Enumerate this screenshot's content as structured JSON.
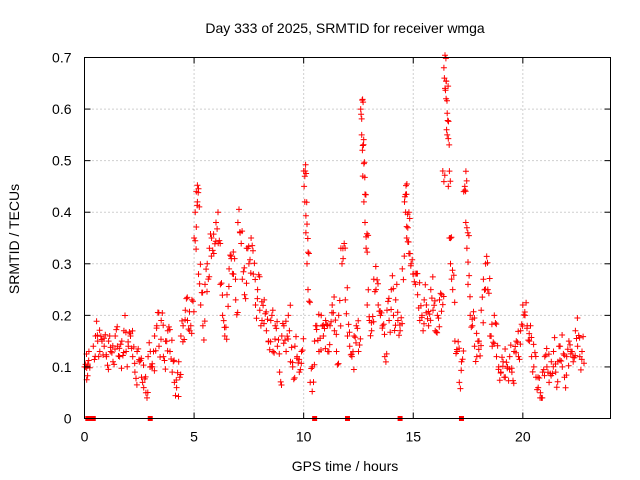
{
  "chart_data": {
    "type": "scatter",
    "title": "Day 333 of 2025, SRMTID for receiver wmga",
    "xlabel": "GPS time / hours",
    "ylabel": "SRMTID / TECUs",
    "xlim": [
      0,
      24
    ],
    "ylim": [
      0,
      0.7
    ],
    "xticks": [
      0,
      5,
      10,
      15,
      20
    ],
    "xtick_labels": [
      "0",
      "5",
      "10",
      "15",
      "20"
    ],
    "yticks": [
      0,
      0.1,
      0.2,
      0.3,
      0.4,
      0.5,
      0.6,
      0.7
    ],
    "ytick_labels": [
      "0",
      "0.1",
      "0.2",
      "0.3",
      "0.4",
      "0.5",
      "0.6",
      "0.7"
    ],
    "grid": true,
    "marker": "plus",
    "color": "#ff0000",
    "series": [
      {
        "name": "SRMTID",
        "note": "representative sample of the dense point cloud",
        "points": [
          [
            0.0,
            0.1
          ],
          [
            0.05,
            0.105
          ],
          [
            0.1,
            0.098
          ],
          [
            0.15,
            0.102
          ],
          [
            0.4,
            0.14
          ],
          [
            0.5,
            0.16
          ],
          [
            0.6,
            0.15
          ],
          [
            0.7,
            0.13
          ],
          [
            0.8,
            0.15
          ],
          [
            0.9,
            0.14
          ],
          [
            1.0,
            0.12
          ],
          [
            1.1,
            0.15
          ],
          [
            1.2,
            0.13
          ],
          [
            1.3,
            0.11
          ],
          [
            1.4,
            0.16
          ],
          [
            1.5,
            0.14
          ],
          [
            1.6,
            0.12
          ],
          [
            1.7,
            0.15
          ],
          [
            1.8,
            0.17
          ],
          [
            1.9,
            0.13
          ],
          [
            2.0,
            0.14
          ],
          [
            2.1,
            0.16
          ],
          [
            2.2,
            0.12
          ],
          [
            2.3,
            0.09
          ],
          [
            2.4,
            0.13
          ],
          [
            2.5,
            0.11
          ],
          [
            2.6,
            0.08
          ],
          [
            2.7,
            0.06
          ],
          [
            2.8,
            0.05
          ],
          [
            2.9,
            0.12
          ],
          [
            3.0,
            0.13
          ],
          [
            3.1,
            0.1
          ],
          [
            3.2,
            0.16
          ],
          [
            3.3,
            0.18
          ],
          [
            3.4,
            0.14
          ],
          [
            3.5,
            0.19
          ],
          [
            3.6,
            0.12
          ],
          [
            3.7,
            0.15
          ],
          [
            3.8,
            0.17
          ],
          [
            3.9,
            0.13
          ],
          [
            4.0,
            0.09
          ],
          [
            4.1,
            0.07
          ],
          [
            4.2,
            0.06
          ],
          [
            4.3,
            0.11
          ],
          [
            4.4,
            0.16
          ],
          [
            4.5,
            0.18
          ],
          [
            4.6,
            0.21
          ],
          [
            4.7,
            0.19
          ],
          [
            4.8,
            0.17
          ],
          [
            4.9,
            0.23
          ],
          [
            5.0,
            0.35
          ],
          [
            5.05,
            0.4
          ],
          [
            5.1,
            0.44
          ],
          [
            5.15,
            0.42
          ],
          [
            5.2,
            0.28
          ],
          [
            5.3,
            0.22
          ],
          [
            5.4,
            0.18
          ],
          [
            5.5,
            0.26
          ],
          [
            5.6,
            0.3
          ],
          [
            5.7,
            0.33
          ],
          [
            5.8,
            0.35
          ],
          [
            5.9,
            0.32
          ],
          [
            6.0,
            0.38
          ],
          [
            6.1,
            0.34
          ],
          [
            6.2,
            0.26
          ],
          [
            6.3,
            0.2
          ],
          [
            6.4,
            0.16
          ],
          [
            6.5,
            0.24
          ],
          [
            6.6,
            0.29
          ],
          [
            6.7,
            0.31
          ],
          [
            6.8,
            0.28
          ],
          [
            6.9,
            0.23
          ],
          [
            7.0,
            0.38
          ],
          [
            7.1,
            0.36
          ],
          [
            7.2,
            0.27
          ],
          [
            7.3,
            0.24
          ],
          [
            7.4,
            0.33
          ],
          [
            7.5,
            0.3
          ],
          [
            7.6,
            0.35
          ],
          [
            7.7,
            0.28
          ],
          [
            7.8,
            0.22
          ],
          [
            7.9,
            0.25
          ],
          [
            8.0,
            0.21
          ],
          [
            8.1,
            0.19
          ],
          [
            8.2,
            0.23
          ],
          [
            8.3,
            0.17
          ],
          [
            8.4,
            0.15
          ],
          [
            8.5,
            0.19
          ],
          [
            8.6,
            0.13
          ],
          [
            8.7,
            0.18
          ],
          [
            8.8,
            0.14
          ],
          [
            8.9,
            0.09
          ],
          [
            9.0,
            0.16
          ],
          [
            9.1,
            0.18
          ],
          [
            9.2,
            0.13
          ],
          [
            9.3,
            0.2
          ],
          [
            9.4,
            0.11
          ],
          [
            9.5,
            0.1
          ],
          [
            9.6,
            0.14
          ],
          [
            9.7,
            0.12
          ],
          [
            9.8,
            0.09
          ],
          [
            9.9,
            0.13
          ],
          [
            10.0,
            0.48
          ],
          [
            10.02,
            0.45
          ],
          [
            10.05,
            0.42
          ],
          [
            10.1,
            0.36
          ],
          [
            10.15,
            0.3
          ],
          [
            10.2,
            0.25
          ],
          [
            10.3,
            0.07
          ],
          [
            10.4,
            0.1
          ],
          [
            10.5,
            0.15
          ],
          [
            10.6,
            0.18
          ],
          [
            10.7,
            0.13
          ],
          [
            10.8,
            0.2
          ],
          [
            10.9,
            0.16
          ],
          [
            11.0,
            0.19
          ],
          [
            11.1,
            0.13
          ],
          [
            11.2,
            0.18
          ],
          [
            11.3,
            0.22
          ],
          [
            11.4,
            0.17
          ],
          [
            11.5,
            0.13
          ],
          [
            11.6,
            0.2
          ],
          [
            11.7,
            0.33
          ],
          [
            11.8,
            0.31
          ],
          [
            11.9,
            0.23
          ],
          [
            12.0,
            0.16
          ],
          [
            12.1,
            0.14
          ],
          [
            12.2,
            0.12
          ],
          [
            12.3,
            0.16
          ],
          [
            12.4,
            0.18
          ],
          [
            12.5,
            0.13
          ],
          [
            12.6,
            0.6
          ],
          [
            12.62,
            0.59
          ],
          [
            12.65,
            0.55
          ],
          [
            12.68,
            0.52
          ],
          [
            12.7,
            0.47
          ],
          [
            12.75,
            0.42
          ],
          [
            12.8,
            0.38
          ],
          [
            12.85,
            0.33
          ],
          [
            12.9,
            0.22
          ],
          [
            13.0,
            0.19
          ],
          [
            13.1,
            0.17
          ],
          [
            13.2,
            0.27
          ],
          [
            13.3,
            0.25
          ],
          [
            13.4,
            0.22
          ],
          [
            13.5,
            0.2
          ],
          [
            13.6,
            0.18
          ],
          [
            13.7,
            0.12
          ],
          [
            13.8,
            0.21
          ],
          [
            13.9,
            0.19
          ],
          [
            14.0,
            0.25
          ],
          [
            14.1,
            0.2
          ],
          [
            14.2,
            0.23
          ],
          [
            14.3,
            0.19
          ],
          [
            14.4,
            0.17
          ],
          [
            14.5,
            0.29
          ],
          [
            14.6,
            0.42
          ],
          [
            14.62,
            0.43
          ],
          [
            14.65,
            0.4
          ],
          [
            14.7,
            0.35
          ],
          [
            14.75,
            0.37
          ],
          [
            14.8,
            0.32
          ],
          [
            14.9,
            0.3
          ],
          [
            15.0,
            0.28
          ],
          [
            15.1,
            0.26
          ],
          [
            15.2,
            0.24
          ],
          [
            15.3,
            0.19
          ],
          [
            15.4,
            0.2
          ],
          [
            15.5,
            0.23
          ],
          [
            15.6,
            0.22
          ],
          [
            15.7,
            0.18
          ],
          [
            15.8,
            0.25
          ],
          [
            15.9,
            0.21
          ],
          [
            16.0,
            0.17
          ],
          [
            16.1,
            0.2
          ],
          [
            16.2,
            0.23
          ],
          [
            16.3,
            0.24
          ],
          [
            16.35,
            0.48
          ],
          [
            16.4,
            0.68
          ],
          [
            16.42,
            0.66
          ],
          [
            16.45,
            0.64
          ],
          [
            16.5,
            0.62
          ],
          [
            16.52,
            0.56
          ],
          [
            16.55,
            0.55
          ],
          [
            16.6,
            0.45
          ],
          [
            16.65,
            0.35
          ],
          [
            16.7,
            0.3
          ],
          [
            16.8,
            0.25
          ],
          [
            16.9,
            0.15
          ],
          [
            17.0,
            0.13
          ],
          [
            17.1,
            0.07
          ],
          [
            17.2,
            0.11
          ],
          [
            17.3,
            0.44
          ],
          [
            17.35,
            0.45
          ],
          [
            17.4,
            0.38
          ],
          [
            17.45,
            0.33
          ],
          [
            17.5,
            0.26
          ],
          [
            17.6,
            0.2
          ],
          [
            17.7,
            0.18
          ],
          [
            17.8,
            0.14
          ],
          [
            17.9,
            0.12
          ],
          [
            18.0,
            0.15
          ],
          [
            18.1,
            0.21
          ],
          [
            18.2,
            0.27
          ],
          [
            18.3,
            0.3
          ],
          [
            18.4,
            0.25
          ],
          [
            18.5,
            0.16
          ],
          [
            18.6,
            0.14
          ],
          [
            18.7,
            0.2
          ],
          [
            18.8,
            0.12
          ],
          [
            18.9,
            0.1
          ],
          [
            19.0,
            0.09
          ],
          [
            19.1,
            0.11
          ],
          [
            19.2,
            0.08
          ],
          [
            19.3,
            0.1
          ],
          [
            19.4,
            0.12
          ],
          [
            19.5,
            0.09
          ],
          [
            19.6,
            0.13
          ],
          [
            19.7,
            0.15
          ],
          [
            19.8,
            0.12
          ],
          [
            19.9,
            0.17
          ],
          [
            20.0,
            0.22
          ],
          [
            20.1,
            0.2
          ],
          [
            20.2,
            0.18
          ],
          [
            20.3,
            0.15
          ],
          [
            20.4,
            0.12
          ],
          [
            20.5,
            0.1
          ],
          [
            20.6,
            0.08
          ],
          [
            20.7,
            0.06
          ],
          [
            20.8,
            0.05
          ],
          [
            20.9,
            0.09
          ],
          [
            21.0,
            0.12
          ],
          [
            21.1,
            0.1
          ],
          [
            21.2,
            0.07
          ],
          [
            21.3,
            0.11
          ],
          [
            21.4,
            0.13
          ],
          [
            21.5,
            0.09
          ],
          [
            21.6,
            0.11
          ],
          [
            21.7,
            0.14
          ],
          [
            21.8,
            0.1
          ],
          [
            21.9,
            0.08
          ],
          [
            22.0,
            0.12
          ],
          [
            22.1,
            0.15
          ],
          [
            22.2,
            0.13
          ],
          [
            22.3,
            0.11
          ],
          [
            22.4,
            0.17
          ],
          [
            22.5,
            0.14
          ],
          [
            22.6,
            0.12
          ],
          [
            22.7,
            0.13
          ]
        ]
      }
    ],
    "zero_markers_x": [
      0.15,
      0.25,
      0.4,
      3.0,
      10.5,
      12.0,
      14.4,
      17.2
    ]
  }
}
